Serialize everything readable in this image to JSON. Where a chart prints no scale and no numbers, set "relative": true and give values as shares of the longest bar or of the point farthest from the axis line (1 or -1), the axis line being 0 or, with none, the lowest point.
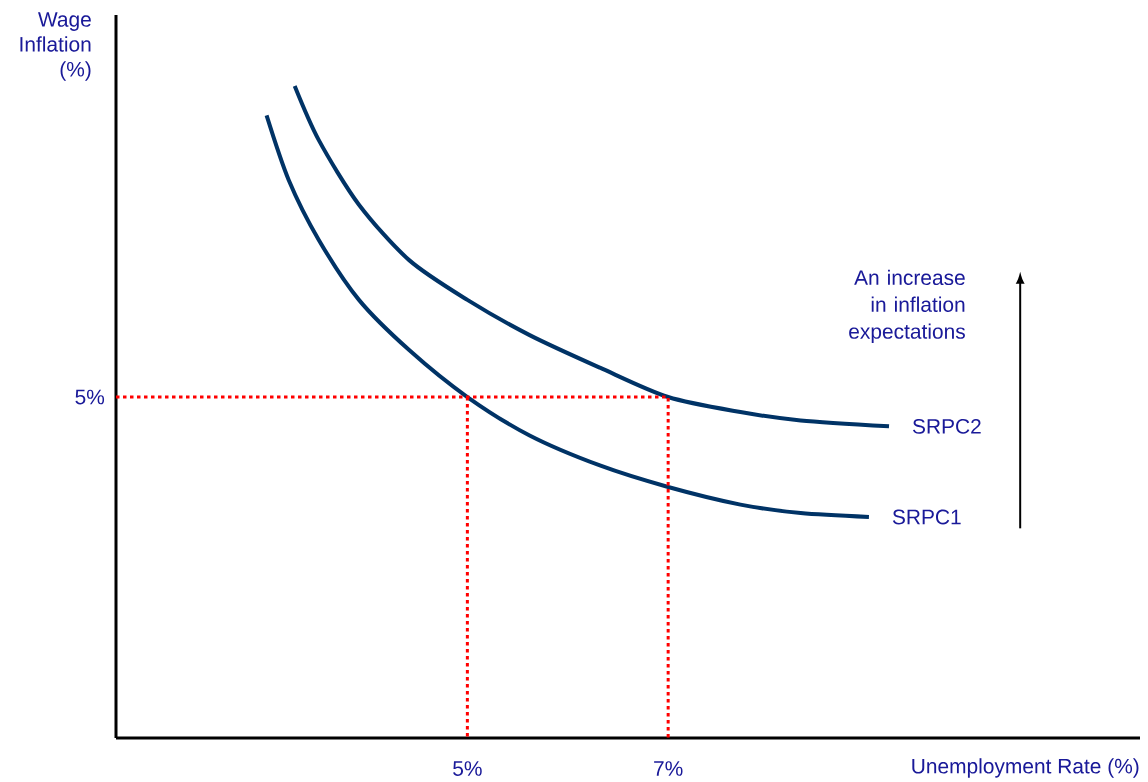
{
  "chart_data": {
    "type": "line",
    "xlabel": "Unemployment Rate (%)",
    "ylabel": "Wage Inflation (%)",
    "relative": true,
    "xlim": [
      1.5,
      11.7
    ],
    "xticks": [
      {
        "value": 5,
        "label": "5%"
      },
      {
        "value": 7,
        "label": "7%"
      }
    ],
    "marker": "none",
    "line_style": "solid",
    "annotations": [
      "An increase in inflation expectations",
      {
        "text": "5%",
        "x": 1.5,
        "y": 0.523
      }
    ],
    "series": [
      {
        "name": "SRPC1",
        "color": "#003366",
        "x": [
          3.0,
          3.22,
          3.52,
          3.92,
          4.42,
          5.0,
          5.62,
          6.32,
          7.0,
          7.72,
          8.32,
          9.0
        ],
        "values": [
          0.955,
          0.856,
          0.764,
          0.672,
          0.595,
          0.523,
          0.464,
          0.418,
          0.385,
          0.358,
          0.345,
          0.339
        ]
      },
      {
        "name": "SRPC2",
        "color": "#003366",
        "x": [
          3.28,
          3.52,
          3.92,
          4.42,
          5.0,
          5.62,
          6.32,
          7.0,
          7.72,
          8.32,
          9.2
        ],
        "values": [
          1,
          0.917,
          0.818,
          0.733,
          0.672,
          0.618,
          0.568,
          0.523,
          0.5,
          0.487,
          0.478
        ]
      },
      {
        "color": "#ff0000",
        "line_style": "dotted",
        "x": [
          1.5,
          7,
          7
        ],
        "values": [
          0.523,
          0.523,
          0
        ]
      },
      {
        "color": "#ff0000",
        "line_style": "dotted",
        "x": [
          5,
          5
        ],
        "values": [
          0.523,
          0
        ]
      }
    ]
  }
}
